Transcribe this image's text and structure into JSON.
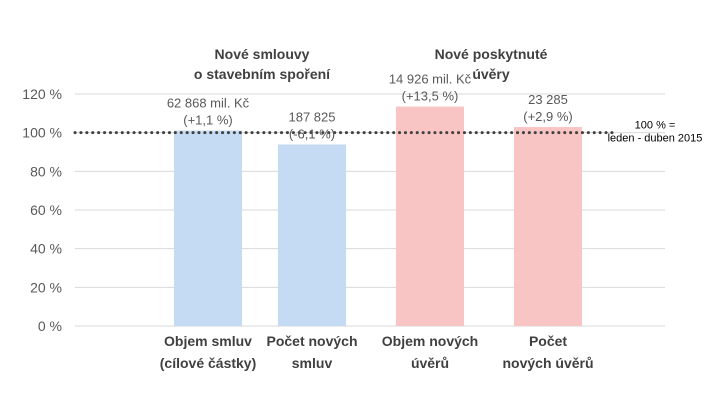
{
  "chart_data": {
    "type": "bar",
    "ylim": [
      0,
      120
    ],
    "yticks": [
      "0 %",
      "20 %",
      "40 %",
      "60 %",
      "80 %",
      "100 %",
      "120 %"
    ],
    "ytick_values": [
      0,
      20,
      40,
      60,
      80,
      100,
      120
    ],
    "grid": true,
    "categories": [
      [
        "Objem smluv",
        "(cílové částky)"
      ],
      [
        "Počet  nových",
        "smluv"
      ],
      [
        "Objem nových",
        "úvěrů"
      ],
      [
        "Počet",
        "nových úvěrů"
      ]
    ],
    "values": [
      101.1,
      93.9,
      113.5,
      102.9
    ],
    "data_labels": [
      [
        "62 868 mil. Kč",
        "(+1,1 %)"
      ],
      [
        "187 825",
        "(-6,1 %)"
      ],
      [
        "14 926 mil. Kč",
        "(+13,5 %)"
      ],
      [
        "23 285",
        "(+2,9 %)"
      ]
    ],
    "bar_colors": [
      "#c5dbf3",
      "#c5dbf3",
      "#f8c4c4",
      "#f8c4c4"
    ],
    "groups": [
      {
        "title": [
          "Nové smlouvy",
          "o stavebním spoření"
        ],
        "categories": [
          0,
          1
        ]
      },
      {
        "title": [
          "Nové poskytnuté",
          "úvěry"
        ],
        "categories": [
          2,
          3
        ]
      }
    ],
    "reference_line": {
      "value": 100,
      "label": [
        "100 % =",
        "leden - duben 2015"
      ]
    }
  },
  "colors": {
    "blue_bar": "#c5dbf3",
    "pink_bar": "#f8c4c4",
    "gridline": "#d9d9d9",
    "reference_line": "#404040"
  }
}
